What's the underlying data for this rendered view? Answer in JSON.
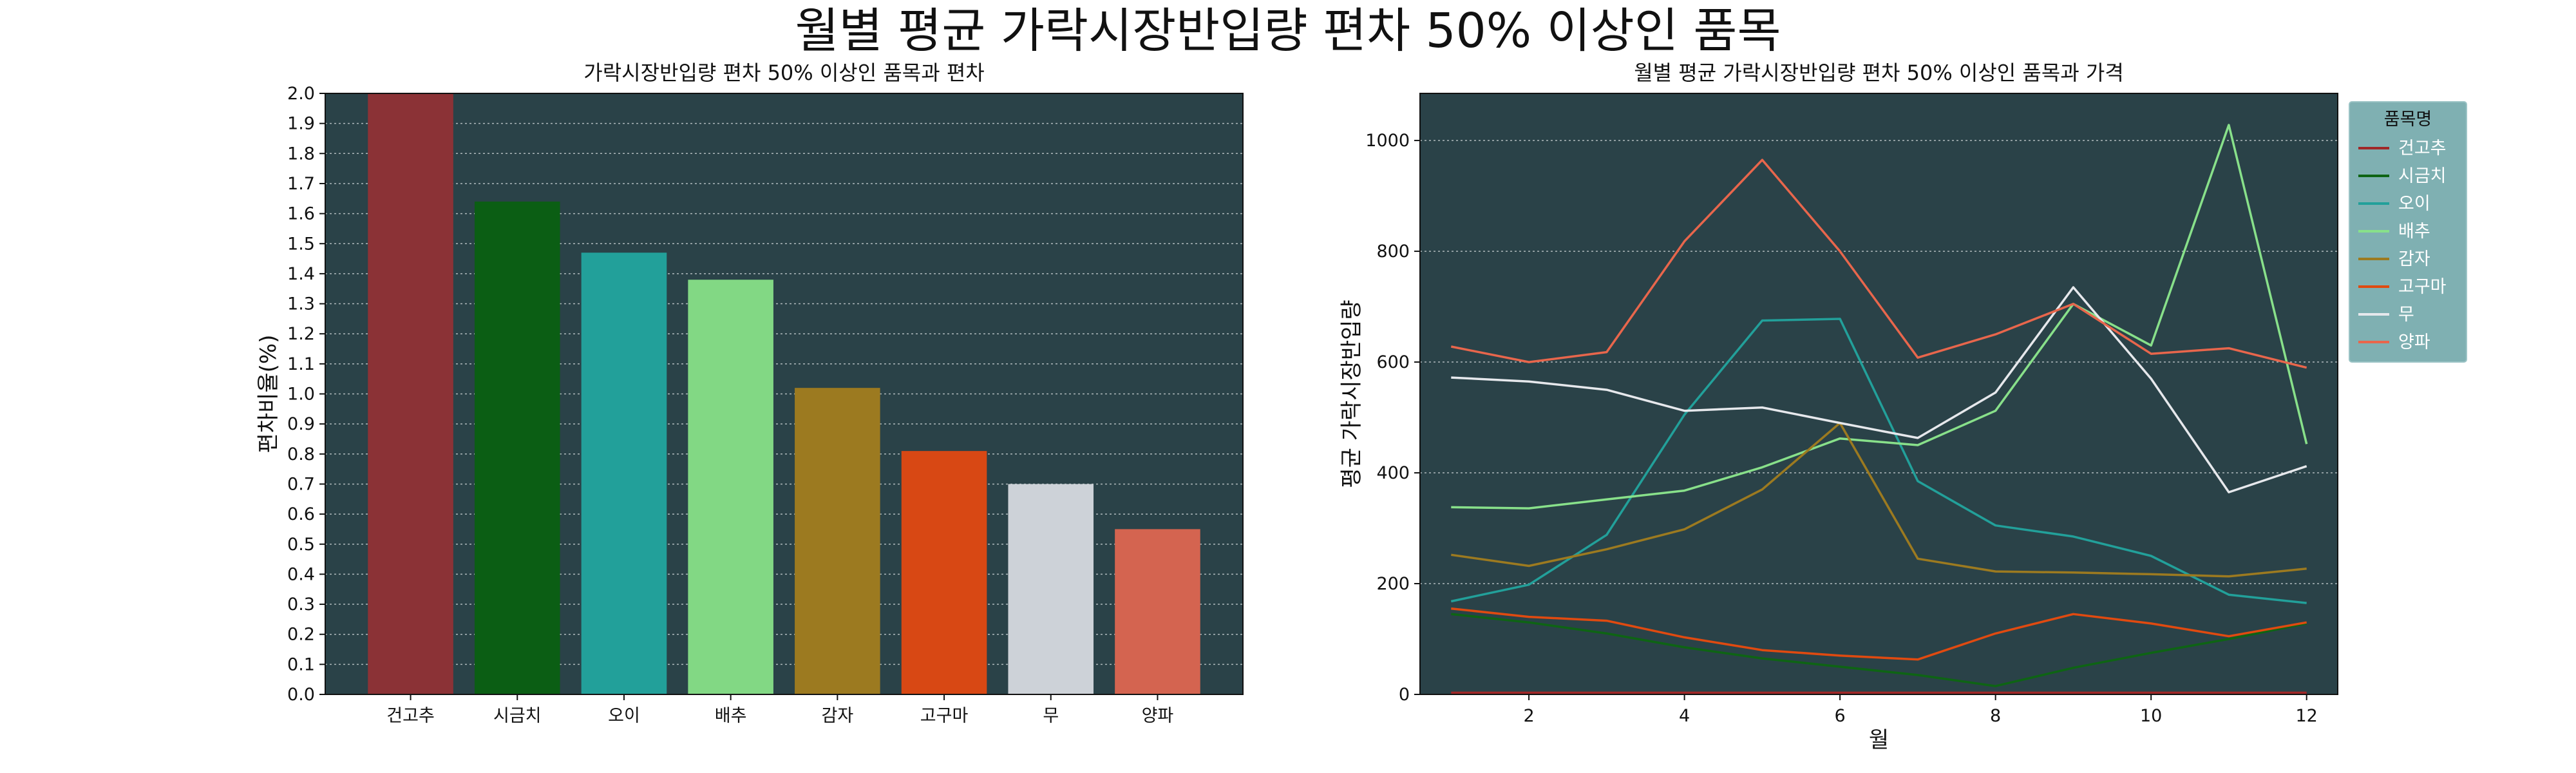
{
  "figure": {
    "title": "월별 평균 가락시장반입량 편차 50% 이상인 품목"
  },
  "colors": {
    "panel_bg": "#2a4248",
    "grid": "#c8d0d2",
    "legend_bg": "#7fb0b2"
  },
  "chart_data": [
    {
      "type": "bar",
      "title": "가락시장반입량 편차 50% 이상인 품목과 편차",
      "xlabel": "",
      "ylabel": "편차비율(%)",
      "ylim": [
        0,
        2.0
      ],
      "yticks": [
        "0.0",
        "0.1",
        "0.2",
        "0.3",
        "0.4",
        "0.5",
        "0.6",
        "0.7",
        "0.8",
        "0.9",
        "1.0",
        "1.1",
        "1.2",
        "1.3",
        "1.4",
        "1.5",
        "1.6",
        "1.7",
        "1.8",
        "1.9",
        "2.0"
      ],
      "grid": "y",
      "categories": [
        "건고추",
        "시금치",
        "오이",
        "배추",
        "감자",
        "고구마",
        "무",
        "양파"
      ],
      "values": [
        2.0,
        1.64,
        1.47,
        1.38,
        1.02,
        0.81,
        0.7,
        0.55
      ],
      "colors": [
        "#8b3236",
        "#0b5e14",
        "#22a09a",
        "#82d884",
        "#9c7a20",
        "#d84814",
        "#cdd2d8",
        "#d46450"
      ]
    },
    {
      "type": "line",
      "title": "월별 평균 가락시장반입량 편차 50% 이상인 품목과 가격",
      "xlabel": "월",
      "ylabel": "평균 가락시장반입량",
      "xlim": [
        0.6,
        12.4
      ],
      "ylim": [
        0,
        1085
      ],
      "xticks": [
        2,
        4,
        6,
        8,
        10,
        12
      ],
      "yticks": [
        0,
        200,
        400,
        600,
        800,
        1000
      ],
      "grid": "y",
      "legend": {
        "title": "품목명",
        "placement": "outside-top-right"
      },
      "x": [
        1,
        2,
        3,
        4,
        5,
        6,
        7,
        8,
        9,
        10,
        11,
        12
      ],
      "series": [
        {
          "name": "건고추",
          "color": "#a02828",
          "values": [
            3,
            3,
            3,
            3,
            3,
            3,
            3,
            3,
            3,
            3,
            3,
            3
          ]
        },
        {
          "name": "시금치",
          "color": "#0e6414",
          "values": [
            145,
            130,
            110,
            85,
            65,
            50,
            35,
            15,
            48,
            75,
            100,
            128
          ]
        },
        {
          "name": "오이",
          "color": "#22a09a",
          "values": [
            168,
            198,
            288,
            505,
            675,
            678,
            385,
            305,
            285,
            250,
            180,
            165
          ]
        },
        {
          "name": "배추",
          "color": "#88e08a",
          "values": [
            338,
            336,
            352,
            368,
            410,
            462,
            450,
            512,
            705,
            630,
            1028,
            452
          ]
        },
        {
          "name": "감자",
          "color": "#9c7a20",
          "values": [
            252,
            232,
            262,
            298,
            370,
            490,
            245,
            222,
            220,
            217,
            213,
            227
          ]
        },
        {
          "name": "고구마",
          "color": "#e04a10",
          "values": [
            155,
            140,
            133,
            103,
            80,
            70,
            63,
            110,
            145,
            128,
            105,
            130
          ]
        },
        {
          "name": "무",
          "color": "#e6e8ec",
          "values": [
            572,
            565,
            550,
            512,
            518,
            490,
            463,
            545,
            735,
            570,
            365,
            412
          ]
        },
        {
          "name": "양파",
          "color": "#e8664c",
          "values": [
            628,
            600,
            618,
            818,
            965,
            800,
            608,
            650,
            705,
            615,
            625,
            590
          ]
        }
      ]
    }
  ]
}
